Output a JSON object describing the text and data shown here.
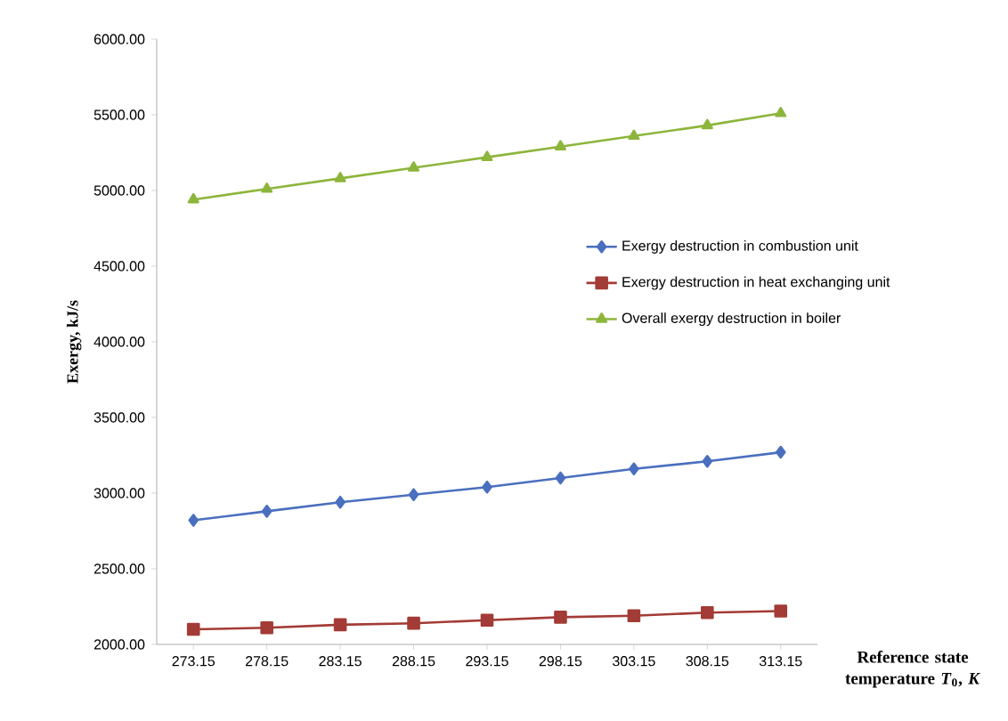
{
  "chart_data": {
    "type": "line",
    "xlabel": "Reference state temperature *T*$_{0}$, *K*",
    "ylabel": "Exergy, kJ/s",
    "categories": [
      "273.15",
      "278.15",
      "283.15",
      "288.15",
      "293.15",
      "298.15",
      "303.15",
      "308.15",
      "313.15"
    ],
    "series": [
      {
        "name": "Exergy destruction in combustion unit",
        "color": "#4a6fbf",
        "marker": "diamond",
        "values": [
          2820,
          2880,
          2940,
          2990,
          3040,
          3100,
          3160,
          3210,
          3270
        ]
      },
      {
        "name": "Exergy destruction in heat exchanging unit",
        "color": "#a33b36",
        "marker": "square",
        "values": [
          2100,
          2110,
          2130,
          2140,
          2160,
          2180,
          2190,
          2210,
          2220
        ]
      },
      {
        "name": "Overall exergy destruction in boiler",
        "color": "#8db53c",
        "marker": "triangle",
        "values": [
          4940,
          5010,
          5080,
          5150,
          5220,
          5290,
          5360,
          5430,
          5510
        ]
      }
    ],
    "ylim": [
      2000,
      6000
    ],
    "yticks": [
      {
        "value": 2000,
        "label": "2000.00"
      },
      {
        "value": 2500,
        "label": "2500.00"
      },
      {
        "value": 3000,
        "label": "3000.00"
      },
      {
        "value": 3500,
        "label": "3500.00"
      },
      {
        "value": 4000,
        "label": "4000.00"
      },
      {
        "value": 4500,
        "label": "4500.00"
      },
      {
        "value": 5000,
        "label": "5000.00"
      },
      {
        "value": 5500,
        "label": "5500.00"
      },
      {
        "value": 6000,
        "label": "6000.00"
      }
    ],
    "legend": "right"
  }
}
